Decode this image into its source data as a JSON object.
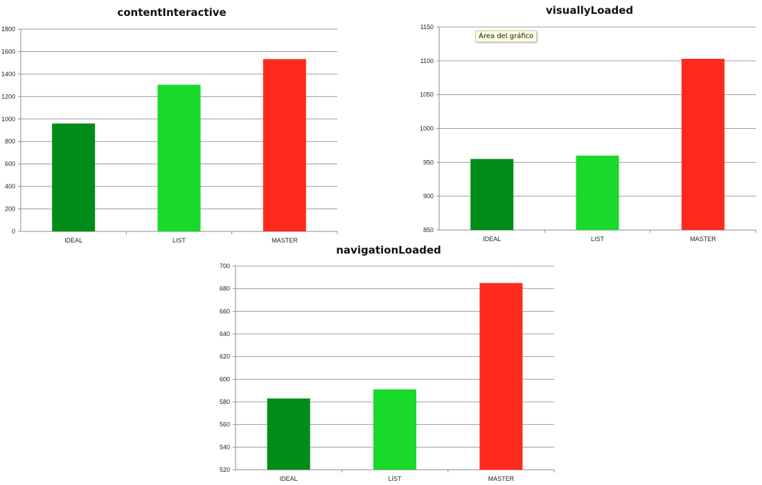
{
  "chart_data": [
    {
      "type": "bar",
      "title": "contentInteractive",
      "categories": [
        "IDEAL",
        "LIST",
        "MASTER"
      ],
      "values": [
        960,
        1305,
        1533
      ],
      "colors": [
        "#008c18",
        "#19d92a",
        "#ff2a1e"
      ],
      "ylim": [
        0,
        1800
      ],
      "yticks": [
        0,
        200,
        400,
        600,
        800,
        1000,
        1200,
        1400,
        1600,
        1800
      ],
      "grid": true,
      "xlabel": "",
      "ylabel": ""
    },
    {
      "type": "bar",
      "title": "visuallyLoaded",
      "categories": [
        "IDEAL",
        "LIST",
        "MASTER"
      ],
      "values": [
        955,
        960,
        1103
      ],
      "colors": [
        "#008c18",
        "#19d92a",
        "#ff2a1e"
      ],
      "ylim": [
        850,
        1150
      ],
      "yticks": [
        850,
        900,
        950,
        1000,
        1050,
        1100,
        1150
      ],
      "grid": true,
      "xlabel": "",
      "ylabel": ""
    },
    {
      "type": "bar",
      "title": "navigationLoaded",
      "categories": [
        "IDEAL",
        "LIST",
        "MASTER"
      ],
      "values": [
        583,
        591,
        685
      ],
      "colors": [
        "#008c18",
        "#19d92a",
        "#ff2a1e"
      ],
      "ylim": [
        520,
        700
      ],
      "yticks": [
        520,
        540,
        560,
        580,
        600,
        620,
        640,
        660,
        680,
        700
      ],
      "grid": true,
      "xlabel": "",
      "ylabel": ""
    }
  ],
  "tooltip": {
    "text": "Área del gráfico"
  }
}
